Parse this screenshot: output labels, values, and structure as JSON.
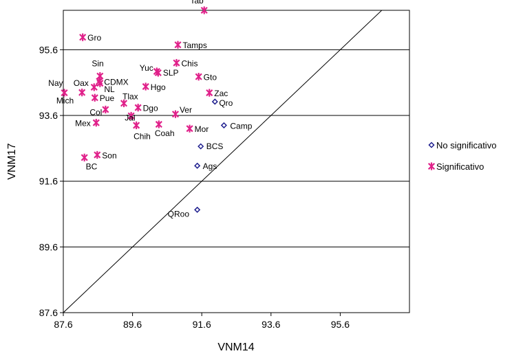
{
  "chart_data": {
    "type": "scatter",
    "xlabel": "VNM14",
    "ylabel": "VNM17",
    "xlim": [
      87.6,
      97.6
    ],
    "ylim": [
      87.6,
      96.8
    ],
    "xticks": [
      "87.6",
      "89.6",
      "91.6",
      "93.6",
      "95.6"
    ],
    "yticks": [
      "87.6",
      "89.6",
      "91.6",
      "93.6",
      "95.6"
    ],
    "grid": "horizontal",
    "reference_line": "y = x",
    "legend_position": "right",
    "series": [
      {
        "name": "No significativo",
        "marker": "diamond",
        "color": "#1f1f8f",
        "points": [
          {
            "label": "Qro",
            "x": 91.98,
            "y": 94.02
          },
          {
            "label": "Camp",
            "x": 92.24,
            "y": 93.3
          },
          {
            "label": "BCS",
            "x": 91.57,
            "y": 92.66
          },
          {
            "label": "Ags",
            "x": 91.47,
            "y": 92.07
          },
          {
            "label": "QRoo",
            "x": 91.47,
            "y": 90.73
          }
        ]
      },
      {
        "name": "Significativo",
        "marker": "star",
        "color": "#e0218a",
        "points": [
          {
            "label": "Tab",
            "x": 91.67,
            "y": 96.8
          },
          {
            "label": "Gro",
            "x": 88.16,
            "y": 95.98
          },
          {
            "label": "Tamps",
            "x": 90.91,
            "y": 95.75
          },
          {
            "label": "Chis",
            "x": 90.87,
            "y": 95.2
          },
          {
            "label": "Yuc",
            "x": 90.3,
            "y": 94.94
          },
          {
            "label": "SLP",
            "x": 90.34,
            "y": 94.9
          },
          {
            "label": "Sin",
            "x": 88.66,
            "y": 94.8
          },
          {
            "label": "Gto",
            "x": 91.51,
            "y": 94.78
          },
          {
            "label": "CDMX",
            "x": 88.64,
            "y": 94.64
          },
          {
            "label": "NL",
            "x": 88.66,
            "y": 94.58
          },
          {
            "label": "Oax",
            "x": 88.49,
            "y": 94.46
          },
          {
            "label": "Hgo",
            "x": 89.98,
            "y": 94.48
          },
          {
            "label": "Nay",
            "x": 87.63,
            "y": 94.29
          },
          {
            "label": "Mich",
            "x": 88.14,
            "y": 94.3
          },
          {
            "label": "Zac",
            "x": 91.82,
            "y": 94.29
          },
          {
            "label": "Pue",
            "x": 88.51,
            "y": 94.14
          },
          {
            "label": "Tlax",
            "x": 89.35,
            "y": 93.97
          },
          {
            "label": "Dgo",
            "x": 89.76,
            "y": 93.84
          },
          {
            "label": "Col",
            "x": 88.82,
            "y": 93.78
          },
          {
            "label": "Jal",
            "x": 89.56,
            "y": 93.59
          },
          {
            "label": "Ver",
            "x": 90.84,
            "y": 93.64
          },
          {
            "label": "Mex",
            "x": 88.55,
            "y": 93.38
          },
          {
            "label": "Chih",
            "x": 89.71,
            "y": 93.3
          },
          {
            "label": "Coah",
            "x": 90.36,
            "y": 93.33
          },
          {
            "label": "Mor",
            "x": 91.25,
            "y": 93.2
          },
          {
            "label": "Son",
            "x": 88.58,
            "y": 92.4
          },
          {
            "label": "BC",
            "x": 88.21,
            "y": 92.32
          }
        ]
      }
    ]
  }
}
